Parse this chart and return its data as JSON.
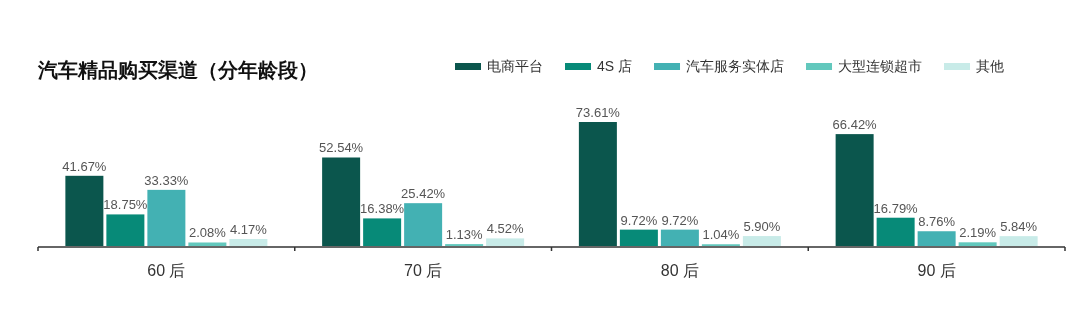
{
  "chart_data": {
    "type": "bar",
    "title": "汽车精品购买渠道（分年龄段）",
    "categories": [
      "60 后",
      "70 后",
      "80 后",
      "90 后"
    ],
    "legend": "top right",
    "series": [
      {
        "name": "电商平台",
        "color": "#0b564d",
        "values": [
          41.67,
          52.54,
          73.61,
          66.42
        ],
        "value_labels": [
          "41.67%",
          "52.54%",
          "73.61%",
          "66.42%"
        ]
      },
      {
        "name": "4S 店",
        "color": "#078a78",
        "values": [
          18.75,
          16.38,
          9.72,
          16.79
        ],
        "value_labels": [
          "18.75%",
          "16.38%",
          "9.72%",
          "16.79%"
        ]
      },
      {
        "name": "汽车服务实体店",
        "color": "#43b1b3",
        "values": [
          33.33,
          25.42,
          9.72,
          8.76
        ],
        "value_labels": [
          "33.33%",
          "25.42%",
          "9.72%",
          "8.76%"
        ]
      },
      {
        "name": "大型连锁超市",
        "color": "#62c8bd",
        "values": [
          2.08,
          1.13,
          1.04,
          2.19
        ],
        "value_labels": [
          "2.08%",
          "1.13%",
          "1.04%",
          "2.19%"
        ]
      },
      {
        "name": "其他",
        "color": "#c8ebe8",
        "values": [
          4.17,
          4.52,
          5.9,
          5.84
        ],
        "value_labels": [
          "4.17%",
          "4.52%",
          "5.90%",
          "5.84%"
        ]
      }
    ]
  }
}
